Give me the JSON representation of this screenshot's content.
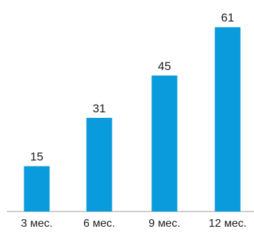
{
  "chart_data": {
    "type": "bar",
    "title": "",
    "xlabel": "",
    "ylabel": "",
    "categories": [
      "3 мес.",
      "6 мес.",
      "9 мес.",
      "12 мес."
    ],
    "values": [
      15,
      31,
      45,
      61
    ],
    "ylim": [
      0,
      70
    ],
    "grid": false,
    "legend": "none",
    "data_labels": true,
    "colors": {
      "bar": "#0a9bdc",
      "axis": "#9a9a9a",
      "text": "#1a1a1a"
    }
  }
}
